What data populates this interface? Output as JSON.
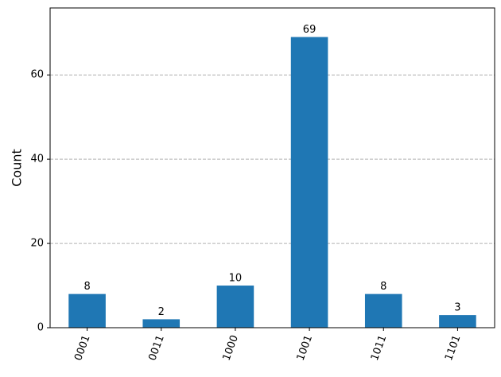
{
  "chart_data": {
    "type": "bar",
    "y_label": "Count",
    "categories": [
      "0001",
      "0011",
      "1000",
      "1001",
      "1011",
      "1101"
    ],
    "values": [
      8,
      2,
      10,
      69,
      8,
      3
    ],
    "color": "#1f77b4",
    "ylim": [
      0,
      75.9
    ],
    "yticks": [
      0,
      20,
      40,
      60
    ],
    "grid": true
  }
}
